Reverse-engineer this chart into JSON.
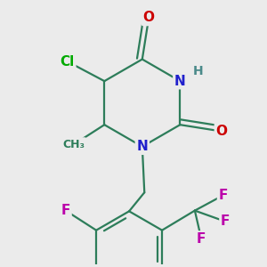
{
  "bg_color": "#ebebeb",
  "bond_color": "#2d7d5a",
  "N_color": "#2020cc",
  "O_color": "#cc0000",
  "Cl_color": "#00aa00",
  "F_color": "#bb00aa",
  "H_color": "#4a8a8a",
  "line_width": 1.6,
  "font_size": 11,
  "figsize": [
    3.0,
    3.0
  ],
  "dpi": 100,
  "xlim": [
    -2.5,
    3.5
  ],
  "ylim": [
    -3.2,
    2.8
  ]
}
